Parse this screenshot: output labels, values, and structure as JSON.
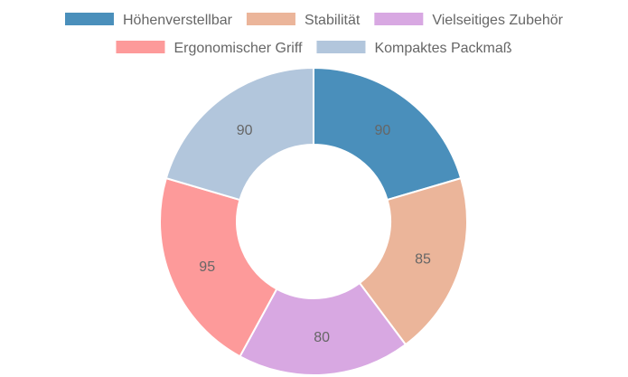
{
  "chart_data": {
    "type": "pie",
    "variant": "doughnut",
    "categories": [
      "Höhenverstellbar",
      "Stabilität",
      "Vielseitiges Zubehör",
      "Ergonomischer Griff",
      "Kompaktes Packmaß"
    ],
    "values": [
      90,
      85,
      80,
      95,
      90
    ],
    "colors": [
      "#4a8fbb",
      "#ebb59a",
      "#d8a8e2",
      "#fd9a9a",
      "#b2c6dc"
    ],
    "slice_border_color": "#ffffff",
    "show_values": true,
    "legend": "top",
    "start_angle": "top",
    "direction": "clockwise"
  }
}
